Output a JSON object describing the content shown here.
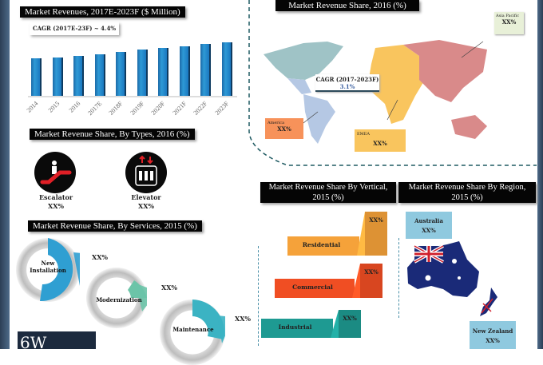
{
  "revenue_chart": {
    "title": "Market Revenues, 2017E-2023F ($ Million)",
    "cagr": "CAGR (2017E-23F) ~ 4.4%"
  },
  "chart_data": {
    "type": "bar",
    "title": "Market Revenues, 2017E-2023F ($ Million)",
    "categories": [
      "2014",
      "2015",
      "2016",
      "2017E",
      "2018F",
      "2019F",
      "2020F",
      "2021F",
      "2022F",
      "2023F"
    ],
    "values": [
      49,
      50,
      52,
      54,
      57,
      60,
      63,
      65,
      68,
      70
    ],
    "xlabel": "",
    "ylabel": "",
    "ylim": [
      0,
      75
    ],
    "annotation": "CAGR (2017E-23F) ~ 4.4%"
  },
  "map": {
    "title": "Market Revenue Share, 2016 (%)",
    "cagr_label": "CAGR (2017-2023F)",
    "cagr_value": "3.1%",
    "regions": [
      {
        "name": "Asia Pacific",
        "value": "XX%",
        "color": "#e8f0d8"
      },
      {
        "name": "America",
        "value": "XX%",
        "color": "#f7925a"
      },
      {
        "name": "EMEA",
        "value": "XX%",
        "color": "#f9c55e"
      }
    ]
  },
  "types": {
    "title": "Market Revenue Share, By  Types, 2016 (%)",
    "items": [
      {
        "name": "Escalator",
        "value": "XX%"
      },
      {
        "name": "Elevator",
        "value": "XX%"
      }
    ]
  },
  "services": {
    "title": "Market Revenue Share, By Services, 2015 (%)",
    "items": [
      {
        "name": "New Installation",
        "value": "XX%",
        "color": "#2f9fd2"
      },
      {
        "name": "Modernization",
        "value": "XX%",
        "color": "#6cc4a8"
      },
      {
        "name": "Maintenance",
        "value": "XX%",
        "color": "#3bb3c3"
      }
    ]
  },
  "vertical": {
    "title": "Market Revenue Share By Vertical, 2015 (%)",
    "items": [
      {
        "name": "Residential",
        "value": "XX%",
        "color": "#f5a23a"
      },
      {
        "name": "Commercial",
        "value": "XX%",
        "color": "#f04e23"
      },
      {
        "name": "Industrial",
        "value": "XX%",
        "color": "#1e9a92"
      }
    ]
  },
  "region": {
    "title": "Market Revenue Share By Region, 2015 (%)",
    "items": [
      {
        "name": "Australia",
        "value": "XX%"
      },
      {
        "name": "New Zealand",
        "value": "XX%"
      }
    ]
  },
  "logo": {
    "text": "6W"
  }
}
